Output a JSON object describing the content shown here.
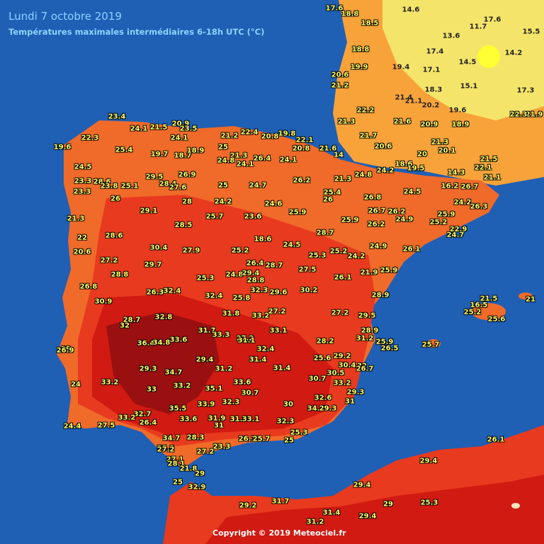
{
  "header": {
    "title": "Lundi 7 octobre 2019",
    "subtitle": "Températures maximales intermédiaires 6-18h UTC (°C)"
  },
  "footer": {
    "copyright": "Copyright © 2019 Meteociel.fr"
  },
  "colors": {
    "sea": "#1f5fb4",
    "cool": "#f4e46a",
    "mild": "#f8a23a",
    "warm": "#f06a2a",
    "hot": "#e83a1e",
    "very_hot": "#d01a12",
    "extreme": "#9a1010",
    "label": "#ffff66"
  },
  "labels": [
    {
      "v": "17.6"
    },
    {
      "v": "18.8"
    },
    {
      "v": "18.5"
    },
    {
      "v": "14.6"
    },
    {
      "v": "17.6"
    },
    {
      "v": "11.7"
    },
    {
      "v": "15.5"
    },
    {
      "v": "13.6"
    },
    {
      "v": "17.4"
    },
    {
      "v": "14.5"
    },
    {
      "v": "14.2"
    },
    {
      "v": "18.8"
    },
    {
      "v": "19.9"
    },
    {
      "v": "19.4"
    },
    {
      "v": "17.1"
    },
    {
      "v": "20.6"
    },
    {
      "v": "21.2"
    },
    {
      "v": "18.3"
    },
    {
      "v": "15.1"
    },
    {
      "v": "17.3"
    },
    {
      "v": "21.4"
    },
    {
      "v": "21.1"
    },
    {
      "v": "20.2"
    },
    {
      "v": "22.2"
    },
    {
      "v": "19.6"
    },
    {
      "v": "21.3"
    },
    {
      "v": "21.6"
    },
    {
      "v": "20.9"
    },
    {
      "v": "18.9"
    },
    {
      "v": "21.9"
    },
    {
      "v": "22.3"
    },
    {
      "v": "23.4"
    },
    {
      "v": "20.9"
    },
    {
      "v": "24.1"
    },
    {
      "v": "21.5"
    },
    {
      "v": "23.5"
    },
    {
      "v": "21.7"
    },
    {
      "v": "22.3"
    },
    {
      "v": "24.1"
    },
    {
      "v": "21.2"
    },
    {
      "v": "22.4"
    },
    {
      "v": "20.8"
    },
    {
      "v": "19.8"
    },
    {
      "v": "22.1"
    },
    {
      "v": "19.6"
    },
    {
      "v": "25.4"
    },
    {
      "v": "19.7"
    },
    {
      "v": "18.7"
    },
    {
      "v": "18.9"
    },
    {
      "v": "25"
    },
    {
      "v": "21.3"
    },
    {
      "v": "24.8"
    },
    {
      "v": "24.1"
    },
    {
      "v": "26.4"
    },
    {
      "v": "24.1"
    },
    {
      "v": "20.8"
    },
    {
      "v": "21.6"
    },
    {
      "v": "14"
    },
    {
      "v": "20.6"
    },
    {
      "v": "20"
    },
    {
      "v": "21.3"
    },
    {
      "v": "20.1"
    },
    {
      "v": "21.5"
    },
    {
      "v": "24.5"
    },
    {
      "v": "23.3"
    },
    {
      "v": "28.6"
    },
    {
      "v": "23.8"
    },
    {
      "v": "25.1"
    },
    {
      "v": "29.5"
    },
    {
      "v": "26.9"
    },
    {
      "v": "28.4"
    },
    {
      "v": "27.6"
    },
    {
      "v": "25"
    },
    {
      "v": "24.7"
    },
    {
      "v": "26.2"
    },
    {
      "v": "21.3"
    },
    {
      "v": "24.8"
    },
    {
      "v": "24.2"
    },
    {
      "v": "18.6"
    },
    {
      "v": "19.5"
    },
    {
      "v": "14.3"
    },
    {
      "v": "26.7"
    },
    {
      "v": "16.2"
    },
    {
      "v": "22.1"
    },
    {
      "v": "21.1"
    },
    {
      "v": "23.3"
    },
    {
      "v": "26"
    },
    {
      "v": "28"
    },
    {
      "v": "24.2"
    },
    {
      "v": "24.6"
    },
    {
      "v": "25.4"
    },
    {
      "v": "26"
    },
    {
      "v": "26.8"
    },
    {
      "v": "24.5"
    },
    {
      "v": "24.2"
    },
    {
      "v": "26.3"
    },
    {
      "v": "29.1"
    },
    {
      "v": "25.7"
    },
    {
      "v": "23.6"
    },
    {
      "v": "25.9"
    },
    {
      "v": "26.7"
    },
    {
      "v": "26.2"
    },
    {
      "v": "25.9"
    },
    {
      "v": "25.9"
    },
    {
      "v": "21.3"
    },
    {
      "v": "28.6"
    },
    {
      "v": "28.5"
    },
    {
      "v": "18.6"
    },
    {
      "v": "28.7"
    },
    {
      "v": "26.2"
    },
    {
      "v": "24.9"
    },
    {
      "v": "25.2"
    },
    {
      "v": "22.9"
    },
    {
      "v": "22"
    },
    {
      "v": "30.4"
    },
    {
      "v": "27.9"
    },
    {
      "v": "25.2"
    },
    {
      "v": "24.5"
    },
    {
      "v": "25.3"
    },
    {
      "v": "25.2"
    },
    {
      "v": "24.2"
    },
    {
      "v": "24.9"
    },
    {
      "v": "26.1"
    },
    {
      "v": "24.7"
    },
    {
      "v": "20.6"
    },
    {
      "v": "27.2"
    },
    {
      "v": "29.7"
    },
    {
      "v": "26.4"
    },
    {
      "v": "28.7"
    },
    {
      "v": "27.5"
    },
    {
      "v": "28.8"
    },
    {
      "v": "25.3"
    },
    {
      "v": "24.8"
    },
    {
      "v": "29.4"
    },
    {
      "v": "28.8"
    },
    {
      "v": "26.1"
    },
    {
      "v": "21.9"
    },
    {
      "v": "25.9"
    },
    {
      "v": "26.8"
    },
    {
      "v": "26.3"
    },
    {
      "v": "32.4"
    },
    {
      "v": "32.4"
    },
    {
      "v": "32.3"
    },
    {
      "v": "29.6"
    },
    {
      "v": "30.2"
    },
    {
      "v": "28.9"
    },
    {
      "v": "25.8"
    },
    {
      "v": "30.9"
    },
    {
      "v": "32.8"
    },
    {
      "v": "31.8"
    },
    {
      "v": "33.2"
    },
    {
      "v": "27.2"
    },
    {
      "v": "27.2"
    },
    {
      "v": "29.5"
    },
    {
      "v": "28.7"
    },
    {
      "v": "32"
    },
    {
      "v": "31.7"
    },
    {
      "v": "33.3"
    },
    {
      "v": "33.1"
    },
    {
      "v": "28.9"
    },
    {
      "v": "27.2"
    },
    {
      "v": "31.1"
    },
    {
      "v": "31.2"
    },
    {
      "v": "29"
    },
    {
      "v": "36.4"
    },
    {
      "v": "34.8"
    },
    {
      "v": "33.6"
    },
    {
      "v": "32.4"
    },
    {
      "v": "28.2"
    },
    {
      "v": "25.9"
    },
    {
      "v": "26.5"
    },
    {
      "v": "26.9"
    },
    {
      "v": "29.4"
    },
    {
      "v": "31.4"
    },
    {
      "v": "25.6"
    },
    {
      "v": "29.2"
    },
    {
      "v": "30.4"
    },
    {
      "v": "29.3"
    },
    {
      "v": "34.7"
    },
    {
      "v": "31.2"
    },
    {
      "v": "31.4"
    },
    {
      "v": "30.5"
    },
    {
      "v": "32"
    },
    {
      "v": "26.7"
    },
    {
      "v": "33.2"
    },
    {
      "v": "33.6"
    },
    {
      "v": "30.7"
    },
    {
      "v": "33.2"
    },
    {
      "v": "24"
    },
    {
      "v": "33"
    },
    {
      "v": "33.2"
    },
    {
      "v": "35.1"
    },
    {
      "v": "30.7"
    },
    {
      "v": "29.3"
    },
    {
      "v": "32.6"
    },
    {
      "v": "31"
    },
    {
      "v": "33.9"
    },
    {
      "v": "32.3"
    },
    {
      "v": "30"
    },
    {
      "v": "34.2"
    },
    {
      "v": "29.3"
    },
    {
      "v": "35.5"
    },
    {
      "v": "32.7"
    },
    {
      "v": "33.2"
    },
    {
      "v": "33.6"
    },
    {
      "v": "31.9"
    },
    {
      "v": "31.9"
    },
    {
      "v": "33.1"
    },
    {
      "v": "32.3"
    },
    {
      "v": "24.4"
    },
    {
      "v": "27.5"
    },
    {
      "v": "26.4"
    },
    {
      "v": "31"
    },
    {
      "v": "25.3"
    },
    {
      "v": "34.7"
    },
    {
      "v": "28.3"
    },
    {
      "v": "27.2"
    },
    {
      "v": "26.7"
    },
    {
      "v": "25.7"
    },
    {
      "v": "25"
    },
    {
      "v": "23.3"
    },
    {
      "v": "25.2"
    },
    {
      "v": "27.2"
    },
    {
      "v": "27.1"
    },
    {
      "v": "28.1"
    },
    {
      "v": "21.8"
    },
    {
      "v": "29"
    },
    {
      "v": "25"
    },
    {
      "v": "32.9"
    },
    {
      "v": "25.7"
    },
    {
      "v": "21.5"
    },
    {
      "v": "16.5"
    },
    {
      "v": "25.2"
    },
    {
      "v": "21"
    },
    {
      "v": "25.6"
    },
    {
      "v": "26.1"
    },
    {
      "v": "29.4"
    },
    {
      "v": "29.4"
    },
    {
      "v": "25.3"
    },
    {
      "v": "29"
    },
    {
      "v": "29.2"
    },
    {
      "v": "31.7"
    },
    {
      "v": "31.4"
    },
    {
      "v": "29.4"
    },
    {
      "v": "31.2"
    }
  ]
}
